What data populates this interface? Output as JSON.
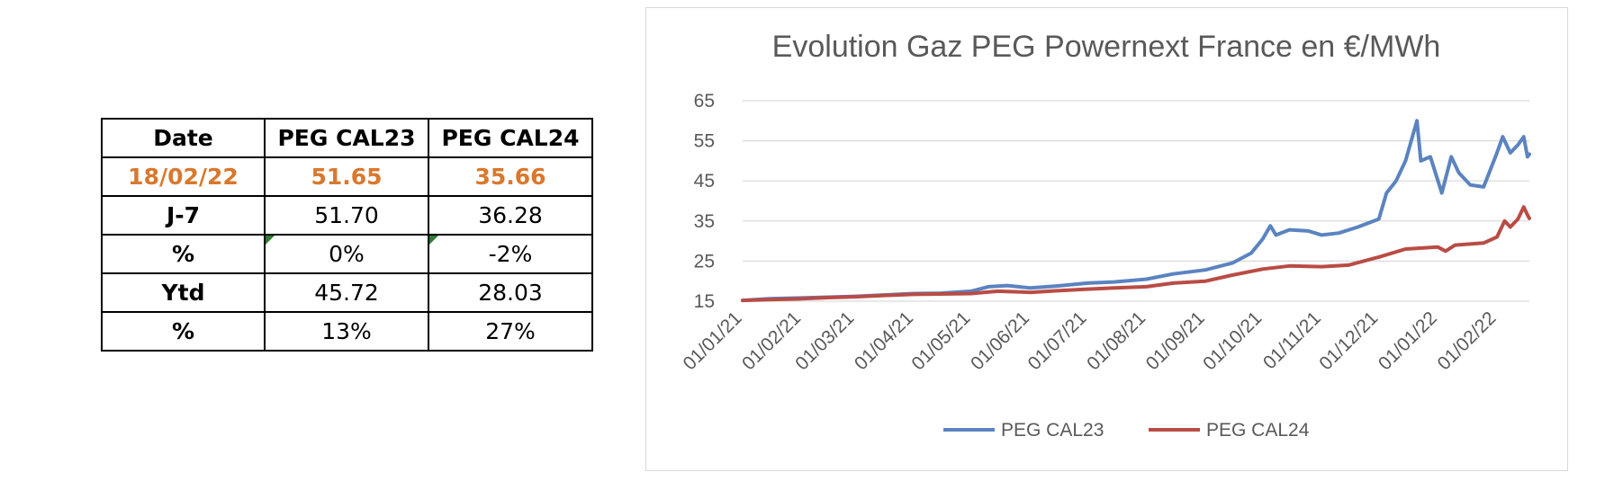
{
  "table": {
    "headers": [
      "Date",
      "PEG CAL23",
      "PEG CAL24"
    ],
    "rows": [
      {
        "label": "18/02/22",
        "cal23": "51.65",
        "cal24": "35.66"
      },
      {
        "label": "J-7",
        "cal23": "51.70",
        "cal24": "36.28"
      },
      {
        "label": "%",
        "cal23": "0%",
        "cal24": "-2%"
      },
      {
        "label": "Ytd",
        "cal23": "45.72",
        "cal24": "28.03"
      },
      {
        "label": "%",
        "cal23": "13%",
        "cal24": "27%"
      }
    ],
    "highlight_color": "#d9782d",
    "flag_color": "#2e7d32"
  },
  "chart_data": {
    "type": "line",
    "title": "Evolution Gaz PEG Powernext France en €/MWh",
    "xlabel": "",
    "ylabel": "",
    "ylim": [
      15,
      65
    ],
    "yticks": [
      15,
      25,
      35,
      45,
      55,
      65
    ],
    "xlim": [
      "2021-01-01",
      "2022-02-18"
    ],
    "xticks": [
      {
        "date": "2021-01-01",
        "label": "01/01/21"
      },
      {
        "date": "2021-02-01",
        "label": "01/02/21"
      },
      {
        "date": "2021-03-01",
        "label": "01/03/21"
      },
      {
        "date": "2021-04-01",
        "label": "01/04/21"
      },
      {
        "date": "2021-05-01",
        "label": "01/05/21"
      },
      {
        "date": "2021-06-01",
        "label": "01/06/21"
      },
      {
        "date": "2021-07-01",
        "label": "01/07/21"
      },
      {
        "date": "2021-08-01",
        "label": "01/08/21"
      },
      {
        "date": "2021-09-01",
        "label": "01/09/21"
      },
      {
        "date": "2021-10-01",
        "label": "01/10/21"
      },
      {
        "date": "2021-11-01",
        "label": "01/11/21"
      },
      {
        "date": "2021-12-01",
        "label": "01/12/21"
      },
      {
        "date": "2022-01-01",
        "label": "01/01/22"
      },
      {
        "date": "2022-02-01",
        "label": "01/02/22"
      }
    ],
    "grid": true,
    "legend": "bottom",
    "series": [
      {
        "name": "PEG CAL23",
        "color": "#5b83c0",
        "points": [
          [
            "2021-01-01",
            15.2
          ],
          [
            "2021-01-15",
            15.6
          ],
          [
            "2021-02-01",
            15.8
          ],
          [
            "2021-02-15",
            16.0
          ],
          [
            "2021-03-01",
            16.2
          ],
          [
            "2021-03-15",
            16.5
          ],
          [
            "2021-04-01",
            16.9
          ],
          [
            "2021-04-15",
            17.0
          ],
          [
            "2021-05-01",
            17.5
          ],
          [
            "2021-05-10",
            18.6
          ],
          [
            "2021-05-20",
            18.9
          ],
          [
            "2021-06-01",
            18.3
          ],
          [
            "2021-06-15",
            18.8
          ],
          [
            "2021-07-01",
            19.5
          ],
          [
            "2021-07-15",
            19.8
          ],
          [
            "2021-08-01",
            20.5
          ],
          [
            "2021-08-15",
            21.8
          ],
          [
            "2021-09-01",
            22.8
          ],
          [
            "2021-09-15",
            24.5
          ],
          [
            "2021-09-25",
            27.0
          ],
          [
            "2021-10-01",
            30.5
          ],
          [
            "2021-10-05",
            33.8
          ],
          [
            "2021-10-08",
            31.5
          ],
          [
            "2021-10-15",
            32.8
          ],
          [
            "2021-10-25",
            32.5
          ],
          [
            "2021-11-01",
            31.5
          ],
          [
            "2021-11-10",
            32.0
          ],
          [
            "2021-11-20",
            33.5
          ],
          [
            "2021-12-01",
            35.5
          ],
          [
            "2021-12-05",
            42.0
          ],
          [
            "2021-12-10",
            45.0
          ],
          [
            "2021-12-15",
            50.0
          ],
          [
            "2021-12-21",
            60.0
          ],
          [
            "2021-12-23",
            50.0
          ],
          [
            "2021-12-28",
            51.0
          ],
          [
            "2022-01-03",
            42.0
          ],
          [
            "2022-01-08",
            51.0
          ],
          [
            "2022-01-12",
            47.0
          ],
          [
            "2022-01-18",
            44.0
          ],
          [
            "2022-01-25",
            43.5
          ],
          [
            "2022-02-01",
            52.0
          ],
          [
            "2022-02-04",
            56.0
          ],
          [
            "2022-02-08",
            52.0
          ],
          [
            "2022-02-12",
            54.0
          ],
          [
            "2022-02-15",
            56.0
          ],
          [
            "2022-02-17",
            51.0
          ],
          [
            "2022-02-18",
            51.65
          ]
        ]
      },
      {
        "name": "PEG CAL24",
        "color": "#b94c45",
        "points": [
          [
            "2021-01-01",
            15.2
          ],
          [
            "2021-01-15",
            15.4
          ],
          [
            "2021-02-01",
            15.6
          ],
          [
            "2021-02-15",
            15.9
          ],
          [
            "2021-03-01",
            16.1
          ],
          [
            "2021-03-15",
            16.4
          ],
          [
            "2021-04-01",
            16.7
          ],
          [
            "2021-04-15",
            16.8
          ],
          [
            "2021-05-01",
            16.9
          ],
          [
            "2021-05-15",
            17.5
          ],
          [
            "2021-06-01",
            17.2
          ],
          [
            "2021-06-15",
            17.6
          ],
          [
            "2021-07-01",
            18.0
          ],
          [
            "2021-07-15",
            18.3
          ],
          [
            "2021-08-01",
            18.6
          ],
          [
            "2021-08-15",
            19.5
          ],
          [
            "2021-09-01",
            20.0
          ],
          [
            "2021-09-15",
            21.5
          ],
          [
            "2021-10-01",
            23.0
          ],
          [
            "2021-10-15",
            23.8
          ],
          [
            "2021-11-01",
            23.6
          ],
          [
            "2021-11-15",
            24.0
          ],
          [
            "2021-12-01",
            26.0
          ],
          [
            "2021-12-15",
            28.0
          ],
          [
            "2022-01-01",
            28.5
          ],
          [
            "2022-01-05",
            27.5
          ],
          [
            "2022-01-10",
            29.0
          ],
          [
            "2022-01-25",
            29.5
          ],
          [
            "2022-02-01",
            31.0
          ],
          [
            "2022-02-05",
            35.0
          ],
          [
            "2022-02-08",
            33.5
          ],
          [
            "2022-02-12",
            35.5
          ],
          [
            "2022-02-15",
            38.5
          ],
          [
            "2022-02-17",
            36.5
          ],
          [
            "2022-02-18",
            35.66
          ]
        ]
      }
    ]
  }
}
